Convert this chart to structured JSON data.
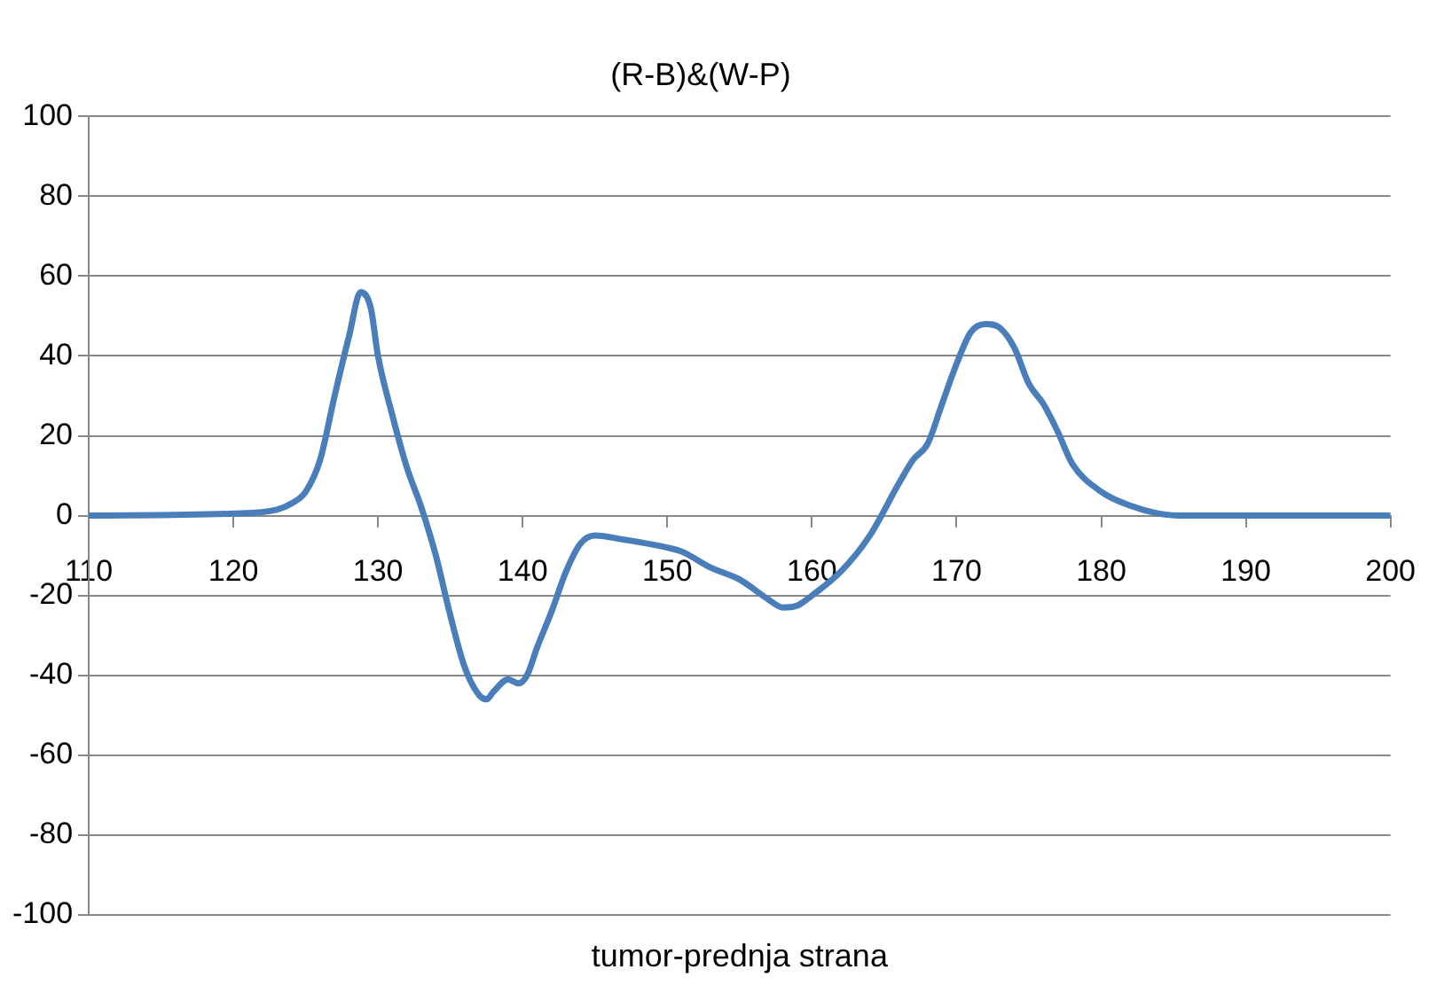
{
  "chart_data": {
    "type": "line",
    "title": "(R-B)&(W-P)",
    "xlabel": "tumor-prednja strana",
    "xlim": [
      110,
      200
    ],
    "xticks": [
      110,
      120,
      130,
      140,
      150,
      160,
      170,
      180,
      190,
      200
    ],
    "ylim": [
      -100,
      100
    ],
    "yticks": [
      -100,
      -80,
      -60,
      -40,
      -20,
      0,
      20,
      40,
      60,
      80,
      100
    ],
    "grid": "y",
    "legend": false,
    "marker": "none",
    "line_style": "solid",
    "series": [
      {
        "color": "#4a7ebb",
        "x": [
          110,
          120,
          123,
          124,
          125,
          126,
          127,
          128,
          128.8,
          129.5,
          130,
          131,
          132,
          133,
          134,
          135,
          136,
          137,
          137.5,
          138,
          139,
          139.7,
          140.3,
          141,
          142,
          143,
          144,
          145,
          147,
          150,
          151,
          153,
          155,
          157,
          158,
          159,
          160,
          162,
          164,
          166,
          167,
          168,
          169,
          170,
          171,
          172,
          173,
          174,
          175,
          176,
          177,
          178,
          180,
          182,
          184,
          186,
          200
        ],
        "values": [
          0,
          0.5,
          1.5,
          3,
          6,
          14,
          30,
          45,
          56,
          52,
          40,
          25,
          12,
          2,
          -10,
          -25,
          -38,
          -45,
          -46,
          -44,
          -41,
          -42,
          -40,
          -33,
          -24,
          -14,
          -7,
          -5,
          -6,
          -8,
          -9,
          -13,
          -16,
          -21,
          -23,
          -22.5,
          -20,
          -14,
          -5,
          8,
          14,
          18,
          28,
          38,
          46,
          48,
          47,
          42,
          33,
          28,
          21,
          13,
          6,
          2.5,
          0.5,
          0,
          0
        ]
      }
    ]
  }
}
